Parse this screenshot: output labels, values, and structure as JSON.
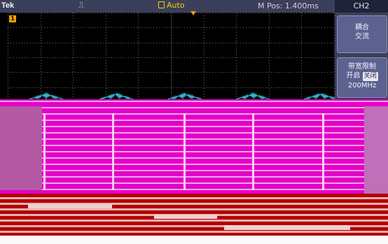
{
  "topbar": {
    "brand": "Tek",
    "trigger_symbol": "⎍",
    "acquisition": "Auto",
    "mpos": "M Pos: 1.400ms"
  },
  "channel_marker": "1",
  "side_menu": {
    "title": "CH2",
    "coupling": {
      "line1": "耦合",
      "line2": "交流"
    },
    "bandwidth": {
      "line1": "带宽限制",
      "line2_prefix": "开启",
      "line2_off": "关闭",
      "line3": "200MHz"
    }
  },
  "colors": {
    "trace": "#34c8e0",
    "accent": "#f4a000",
    "glitch_magenta": "#e400c8",
    "glitch_red": "#b20000"
  }
}
